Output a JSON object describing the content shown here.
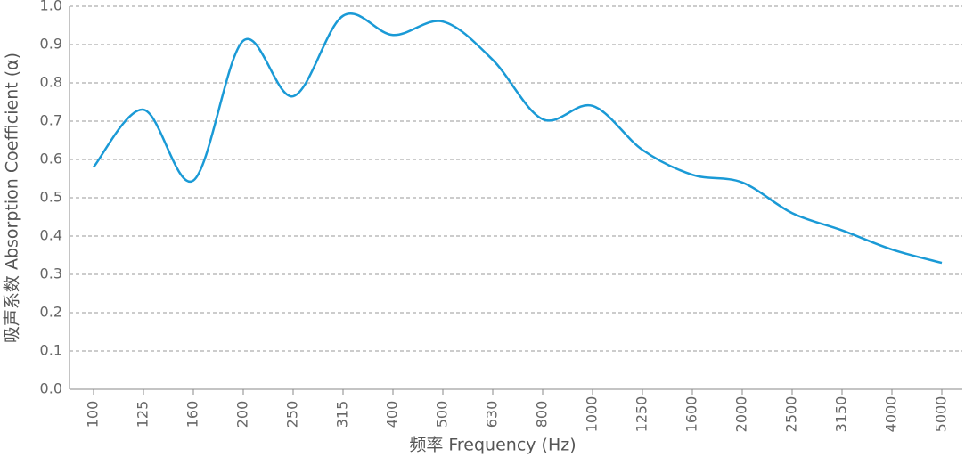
{
  "chart_data": {
    "type": "line",
    "x_label": "频率  Frequency (Hz)",
    "y_label": "吸声系数 Absorption Coefficient (α)",
    "categories": [
      "100",
      "125",
      "160",
      "200",
      "250",
      "315",
      "400",
      "500",
      "630",
      "800",
      "1000",
      "1250",
      "1600",
      "2000",
      "2500",
      "3150",
      "4000",
      "5000"
    ],
    "series": [
      {
        "color": "#1a9ad6",
        "values": [
          0.58,
          0.73,
          0.545,
          0.91,
          0.765,
          0.975,
          0.925,
          0.96,
          0.86,
          0.705,
          0.74,
          0.625,
          0.56,
          0.54,
          0.46,
          0.415,
          0.365,
          0.33
        ]
      }
    ],
    "ylim": [
      0,
      1
    ],
    "yticks": [
      {
        "value": 0,
        "label": "0.0"
      },
      0.1,
      0.2,
      0.3,
      0.4,
      0.5,
      0.6,
      0.7,
      0.8,
      0.9,
      {
        "value": 1,
        "label": "1.0"
      }
    ],
    "grid": true
  }
}
